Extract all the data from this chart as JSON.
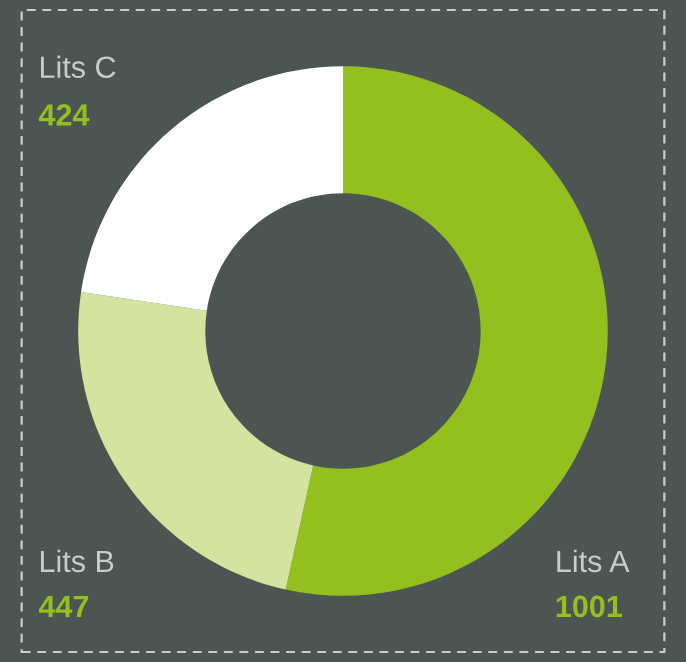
{
  "chart_data": {
    "type": "donut",
    "categories": [
      "Lits A",
      "Lits B",
      "Lits C"
    ],
    "values": [
      1001,
      447,
      424
    ],
    "colors": [
      "#93c01f",
      "#d4e3a0",
      "#ffffff"
    ],
    "data_labels": true,
    "legend": false
  }
}
